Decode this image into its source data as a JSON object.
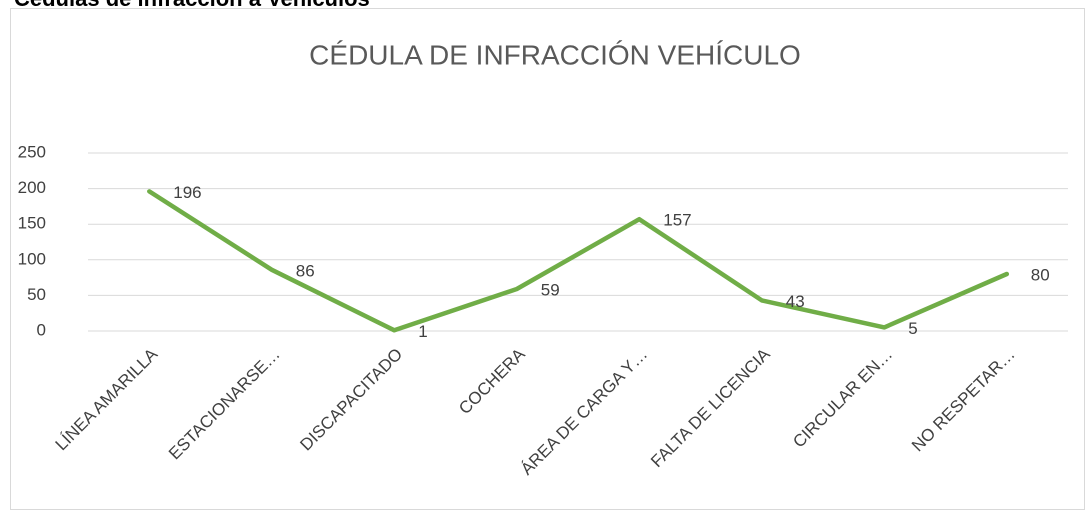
{
  "heading": "Cédulas de infracción a Vehículos",
  "chart_data": {
    "type": "line",
    "title": "CÉDULA DE INFRACCIÓN VEHÍCULO",
    "categories": [
      "LÍNEA AMARILLA",
      "ESTACIONARSE…",
      "DISCAPACITADO",
      "COCHERA",
      "ÁREA DE CARGA Y…",
      "FALTA DE LICENCIA",
      "CIRCULAR EN…",
      "NO RESPETAR…"
    ],
    "values": [
      196,
      86,
      1,
      59,
      157,
      43,
      5,
      80
    ],
    "color": "#70ad47",
    "ylim": [
      0,
      250
    ],
    "yticks": [
      0,
      50,
      100,
      150,
      200,
      250
    ],
    "grid": true
  }
}
